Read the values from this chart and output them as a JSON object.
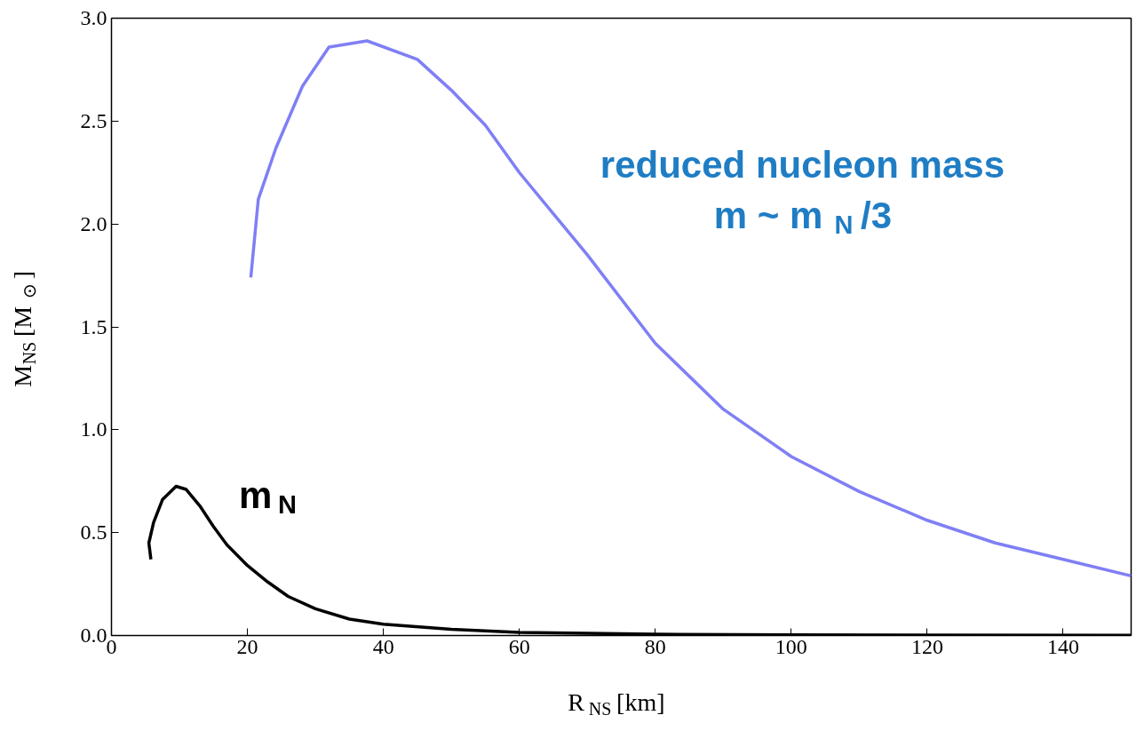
{
  "chart_data": {
    "type": "line",
    "xlabel": "R$_{NS}$ [km]",
    "ylabel": "M$_{NS}$ [M$_{⊙}$]",
    "xlim": [
      0,
      150
    ],
    "ylim": [
      0,
      3
    ],
    "xticks": [
      0,
      20,
      40,
      60,
      80,
      100,
      120,
      140
    ],
    "yticks": [
      {
        "value": 0,
        "label": "0.0"
      },
      {
        "value": 0.5,
        "label": "0.5"
      },
      {
        "value": 1,
        "label": "1.0"
      },
      {
        "value": 1.5,
        "label": "1.5"
      },
      {
        "value": 2,
        "label": "2.0"
      },
      {
        "value": 2.5,
        "label": "2.5"
      },
      {
        "value": 3,
        "label": "3.0"
      }
    ],
    "grid": false,
    "series": [
      {
        "color": "#000000",
        "x": [
          5.8,
          5.5,
          6.2,
          7.5,
          9.5,
          11,
          13,
          15,
          17,
          20,
          23,
          26,
          30,
          35,
          40,
          50,
          60,
          80,
          100,
          150
        ],
        "values": [
          0.37,
          0.45,
          0.55,
          0.66,
          0.725,
          0.71,
          0.63,
          0.53,
          0.44,
          0.34,
          0.26,
          0.19,
          0.13,
          0.08,
          0.055,
          0.03,
          0.015,
          0.006,
          0.003,
          0.001
        ]
      },
      {
        "color": "#7f7ff5",
        "x": [
          20.5,
          21.6,
          24.2,
          28.1,
          32,
          37.6,
          45,
          50,
          55,
          60,
          65,
          70,
          80,
          90,
          100,
          110,
          120,
          130,
          140,
          150
        ],
        "values": [
          1.74,
          2.12,
          2.37,
          2.67,
          2.86,
          2.89,
          2.8,
          2.65,
          2.48,
          2.25,
          2.05,
          1.85,
          1.42,
          1.1,
          0.87,
          0.7,
          0.56,
          0.45,
          0.37,
          0.29
        ]
      }
    ],
    "annotations": [
      "m$_{N}$",
      "reduced nucleon mass",
      "m ~ m$_{N}$/3"
    ]
  }
}
